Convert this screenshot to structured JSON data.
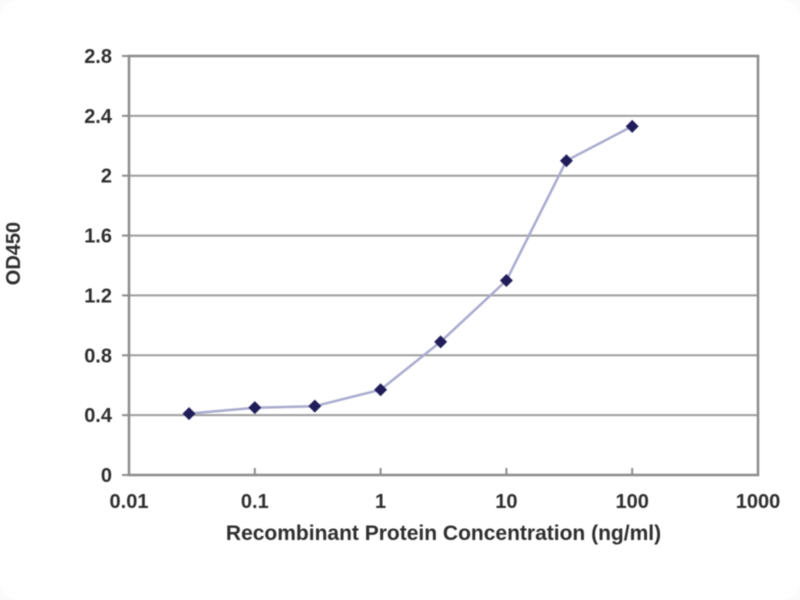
{
  "chart_data": {
    "type": "line",
    "title": "",
    "xlabel": "Recombinant Protein Concentration (ng/ml)",
    "ylabel": "OD450",
    "x_scale": "log",
    "xlim": [
      0.01,
      1000
    ],
    "ylim": [
      0,
      2.8
    ],
    "x_ticks": [
      "0.01",
      "0.1",
      "1",
      "10",
      "100",
      "1000"
    ],
    "y_ticks": [
      "0",
      "0.4",
      "0.8",
      "1.2",
      "1.6",
      "2",
      "2.4",
      "2.8"
    ],
    "grid": "horizontal",
    "legend": "none",
    "series": [
      {
        "name": "OD450",
        "marker": "diamond",
        "x": [
          0.03,
          0.1,
          0.3,
          1,
          3,
          10,
          30,
          100
        ],
        "y": [
          0.41,
          0.45,
          0.46,
          0.57,
          0.89,
          1.3,
          2.1,
          2.33
        ]
      }
    ],
    "colors": {
      "line": "#a9abce",
      "marker": "#201d5a",
      "grid": "#9d9d9d",
      "frame": "#8c8c8c",
      "text": "#2e2e2e",
      "background": "#ffffff"
    }
  }
}
